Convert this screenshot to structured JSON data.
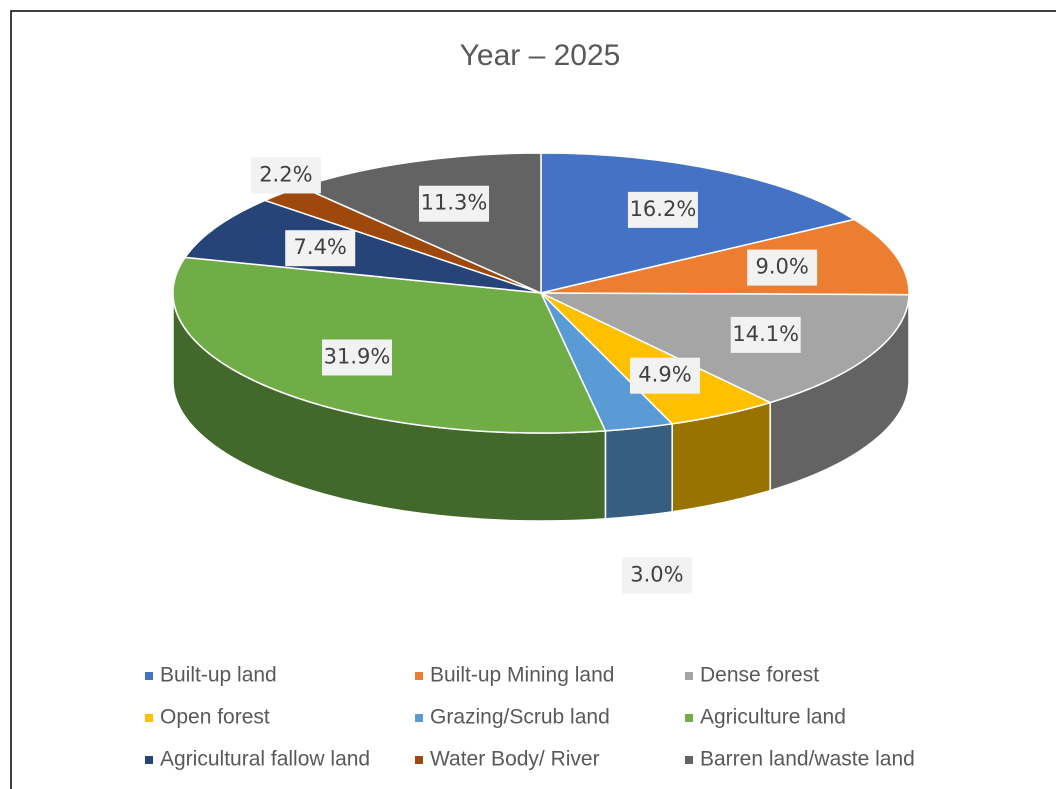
{
  "chart_data": {
    "type": "pie3d",
    "title": "Year – 2025",
    "categories": [
      "Built-up land",
      "Built-up Mining land",
      "Dense forest",
      "Open forest",
      "Grazing/Scrub land",
      "Agriculture land",
      "Agricultural fallow land",
      "Water Body/ River",
      "Barren land/waste land"
    ],
    "values": [
      16.2,
      9.0,
      14.1,
      4.9,
      3.0,
      31.9,
      7.4,
      2.2,
      11.3
    ],
    "value_labels": [
      "16.2%",
      "9.0%",
      "14.1%",
      "4.9%",
      "3.0%",
      "31.9%",
      "7.4%",
      "2.2%",
      "11.3%"
    ],
    "colors": [
      "#4472c4",
      "#ed7d31",
      "#a5a5a5",
      "#ffc000",
      "#5b9bd5",
      "#70ad47",
      "#264478",
      "#9e480e",
      "#636363"
    ],
    "legend": "bottom"
  }
}
